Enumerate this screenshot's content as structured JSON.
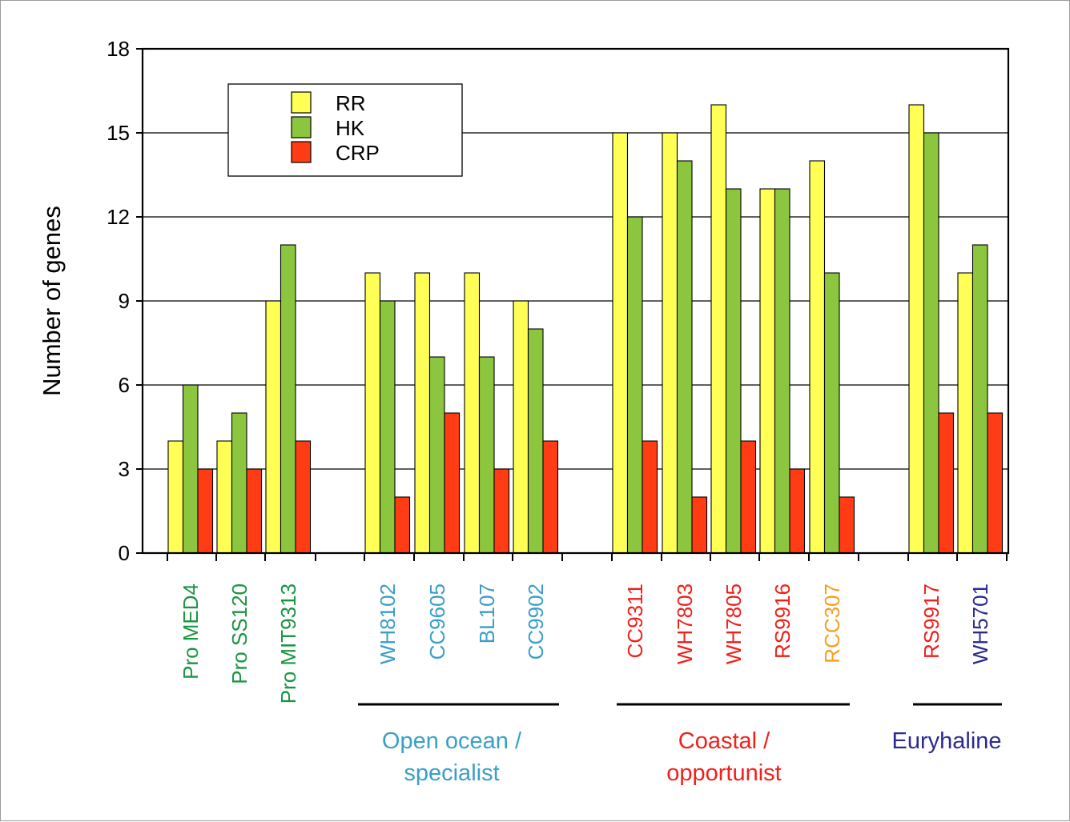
{
  "chart_data": {
    "type": "bar",
    "title": "",
    "ylabel": "Number of genes",
    "xlabel": "",
    "ylim": [
      0,
      18
    ],
    "yticks": [
      0,
      3,
      6,
      9,
      12,
      15,
      18
    ],
    "grid": "horizontal",
    "legend_position": "top-left",
    "categories": [
      "Pro MED4",
      "Pro SS120",
      "Pro MIT9313",
      "WH8102",
      "CC9605",
      "BL107",
      "CC9902",
      "CC9311",
      "WH7803",
      "WH7805",
      "RS9916",
      "RCC307",
      "RS9917",
      "WH5701"
    ],
    "category_colors": [
      "#1a9641",
      "#1a9641",
      "#1a9641",
      "#3a9fc6",
      "#3a9fc6",
      "#3a9fc6",
      "#3a9fc6",
      "#f0201a",
      "#f0201a",
      "#f0201a",
      "#f0201a",
      "#f5a020",
      "#f0201a",
      "#2b2b8f"
    ],
    "series": [
      {
        "name": "RR",
        "color": "#ffff55",
        "values": [
          4,
          4,
          9,
          10,
          10,
          10,
          9,
          15,
          15,
          16,
          13,
          14,
          16,
          10
        ]
      },
      {
        "name": "HK",
        "color": "#8cc63e",
        "values": [
          6,
          5,
          11,
          9,
          7,
          7,
          8,
          12,
          14,
          13,
          13,
          10,
          15,
          11
        ]
      },
      {
        "name": "CRP",
        "color": "#ff3c14",
        "values": [
          3,
          3,
          4,
          2,
          5,
          3,
          4,
          4,
          2,
          4,
          3,
          2,
          5,
          5
        ]
      }
    ],
    "groups": [
      {
        "lines": [
          "Open ocean /",
          "specialist"
        ],
        "color": "#3a9fc6"
      },
      {
        "lines": [
          "Coastal  /",
          "opportunist"
        ],
        "color": "#f0201a"
      },
      {
        "lines": [
          "Euryhaline"
        ],
        "color": "#2b2b8f"
      }
    ]
  }
}
